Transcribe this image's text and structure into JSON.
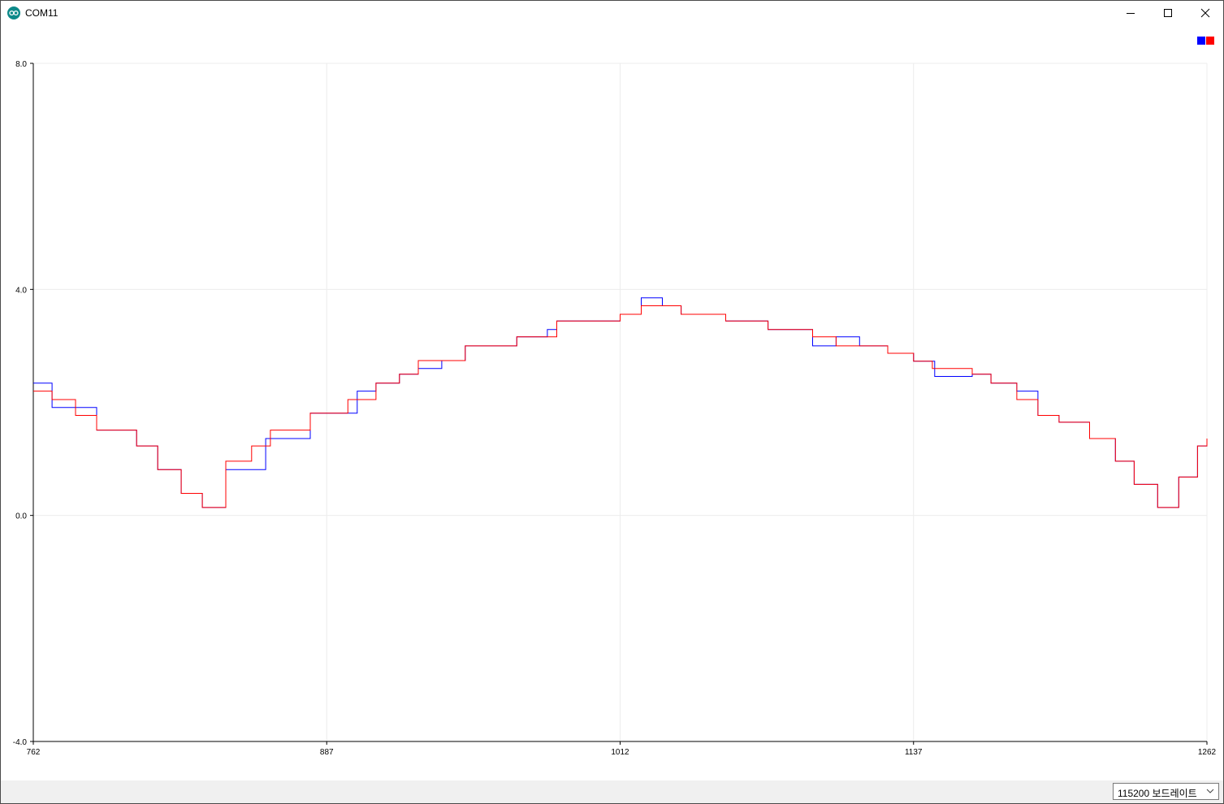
{
  "window": {
    "title": "COM11",
    "icon": "arduino-icon",
    "controls": [
      "minimize-icon",
      "maximize-icon",
      "close-icon"
    ]
  },
  "footer": {
    "baud_label": "115200 보드레이트",
    "caret_icon": "chevron-down-icon"
  },
  "chart_data": {
    "type": "line",
    "title": "",
    "xlabel": "",
    "ylabel": "",
    "xlim": [
      762,
      1262
    ],
    "ylim": [
      -4.0,
      8.0
    ],
    "x_ticks": [
      762,
      887,
      1012,
      1137,
      1262
    ],
    "y_ticks": [
      -4.0,
      0.0,
      4.0,
      8.0
    ],
    "y_tick_labels": [
      "-4.0",
      "0.0",
      "4.0",
      "8.0"
    ],
    "grid": true,
    "legend_placement": "top-right",
    "series": [
      {
        "color": "#0000ff",
        "step_points": [
          [
            762,
            2.34
          ],
          [
            770,
            1.91
          ],
          [
            789,
            1.91
          ],
          [
            789,
            1.51
          ],
          [
            797,
            1.51
          ],
          [
            806,
            1.23
          ],
          [
            814,
            1.23
          ],
          [
            815,
            0.81
          ],
          [
            824,
            0.81
          ],
          [
            825,
            0.39
          ],
          [
            833,
            0.39
          ],
          [
            834,
            0.14
          ],
          [
            842,
            0.14
          ],
          [
            844,
            0.81
          ],
          [
            852,
            0.81
          ],
          [
            861,
            1.36
          ],
          [
            871,
            1.36
          ],
          [
            880,
            1.81
          ],
          [
            895,
            1.81
          ],
          [
            900,
            2.2
          ],
          [
            908,
            2.34
          ],
          [
            918,
            2.5
          ],
          [
            926,
            2.6
          ],
          [
            936,
            2.74
          ],
          [
            946,
            2.74
          ],
          [
            946,
            3.0
          ],
          [
            966,
            3.0
          ],
          [
            968,
            3.16
          ],
          [
            981,
            3.29
          ],
          [
            985,
            3.44
          ],
          [
            1012,
            3.44
          ],
          [
            1012,
            3.56
          ],
          [
            1021,
            3.85
          ],
          [
            1030,
            3.85
          ],
          [
            1030,
            3.71
          ],
          [
            1037,
            3.71
          ],
          [
            1038,
            3.56
          ],
          [
            1048,
            3.56
          ],
          [
            1057,
            3.44
          ],
          [
            1073,
            3.44
          ],
          [
            1075,
            3.29
          ],
          [
            1094,
            3.29
          ],
          [
            1094,
            3.0
          ],
          [
            1104,
            3.0
          ],
          [
            1104,
            3.16
          ],
          [
            1114,
            3.16
          ],
          [
            1114,
            3.0
          ],
          [
            1126,
            2.87
          ],
          [
            1137,
            2.73
          ],
          [
            1145,
            2.73
          ],
          [
            1146,
            2.46
          ],
          [
            1162,
            2.5
          ],
          [
            1170,
            2.34
          ],
          [
            1181,
            2.2
          ],
          [
            1190,
            2.2
          ],
          [
            1190,
            1.77
          ],
          [
            1199,
            1.65
          ],
          [
            1212,
            1.36
          ],
          [
            1223,
            0.96
          ],
          [
            1231,
            0.55
          ],
          [
            1240,
            0.55
          ],
          [
            1241,
            0.14
          ],
          [
            1250,
            0.14
          ],
          [
            1250,
            0.68
          ],
          [
            1257,
            0.68
          ],
          [
            1258,
            1.23
          ],
          [
            1262,
            1.36
          ]
        ]
      },
      {
        "color": "#ff0000",
        "step_points": [
          [
            762,
            2.2
          ],
          [
            770,
            2.05
          ],
          [
            780,
            2.05
          ],
          [
            780,
            1.77
          ],
          [
            789,
            1.77
          ],
          [
            789,
            1.51
          ],
          [
            797,
            1.51
          ],
          [
            806,
            1.23
          ],
          [
            814,
            1.23
          ],
          [
            815,
            0.81
          ],
          [
            824,
            0.81
          ],
          [
            825,
            0.39
          ],
          [
            833,
            0.39
          ],
          [
            834,
            0.14
          ],
          [
            842,
            0.14
          ],
          [
            844,
            0.96
          ],
          [
            852,
            0.96
          ],
          [
            855,
            1.23
          ],
          [
            863,
            1.23
          ],
          [
            863,
            1.51
          ],
          [
            871,
            1.51
          ],
          [
            880,
            1.81
          ],
          [
            895,
            1.81
          ],
          [
            896,
            2.05
          ],
          [
            904,
            2.05
          ],
          [
            908,
            2.34
          ],
          [
            918,
            2.5
          ],
          [
            926,
            2.74
          ],
          [
            946,
            2.74
          ],
          [
            946,
            3.0
          ],
          [
            966,
            3.0
          ],
          [
            968,
            3.16
          ],
          [
            981,
            3.16
          ],
          [
            985,
            3.44
          ],
          [
            1012,
            3.44
          ],
          [
            1012,
            3.56
          ],
          [
            1021,
            3.71
          ],
          [
            1037,
            3.71
          ],
          [
            1038,
            3.56
          ],
          [
            1048,
            3.56
          ],
          [
            1057,
            3.44
          ],
          [
            1073,
            3.44
          ],
          [
            1075,
            3.29
          ],
          [
            1094,
            3.29
          ],
          [
            1094,
            3.16
          ],
          [
            1104,
            3.16
          ],
          [
            1104,
            3.0
          ],
          [
            1126,
            2.87
          ],
          [
            1137,
            2.73
          ],
          [
            1145,
            2.6
          ],
          [
            1162,
            2.5
          ],
          [
            1170,
            2.34
          ],
          [
            1181,
            2.05
          ],
          [
            1190,
            1.77
          ],
          [
            1199,
            1.65
          ],
          [
            1212,
            1.36
          ],
          [
            1223,
            0.96
          ],
          [
            1231,
            0.55
          ],
          [
            1240,
            0.55
          ],
          [
            1241,
            0.14
          ],
          [
            1250,
            0.14
          ],
          [
            1250,
            0.68
          ],
          [
            1257,
            0.68
          ],
          [
            1258,
            1.23
          ],
          [
            1262,
            1.36
          ]
        ]
      }
    ]
  }
}
